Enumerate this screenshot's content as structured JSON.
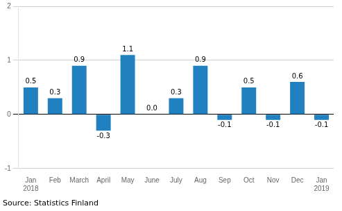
{
  "chart_data": {
    "type": "bar",
    "categories": [
      "Jan\n2018",
      "Feb",
      "March",
      "April",
      "May",
      "June",
      "July",
      "Aug",
      "Sep",
      "Oct",
      "Nov",
      "Dec",
      "Jan\n2019"
    ],
    "values": [
      0.5,
      0.3,
      0.9,
      -0.3,
      1.1,
      0.0,
      0.3,
      0.9,
      -0.1,
      0.5,
      -0.1,
      0.6,
      -0.1
    ],
    "value_labels": [
      "0.5",
      "0.3",
      "0.9",
      "-0.3",
      "1.1",
      "0.0",
      "0.3",
      "0.9",
      "-0.1",
      "0.5",
      "-0.1",
      "0.6",
      "-0.1"
    ],
    "data_labels": true,
    "color": "#2080c0",
    "ylim": [
      -1.0,
      2.0
    ],
    "yticks": [
      -1,
      0,
      1,
      2
    ],
    "grid": true,
    "annotations": [
      "Source: Statistics Finland"
    ]
  }
}
